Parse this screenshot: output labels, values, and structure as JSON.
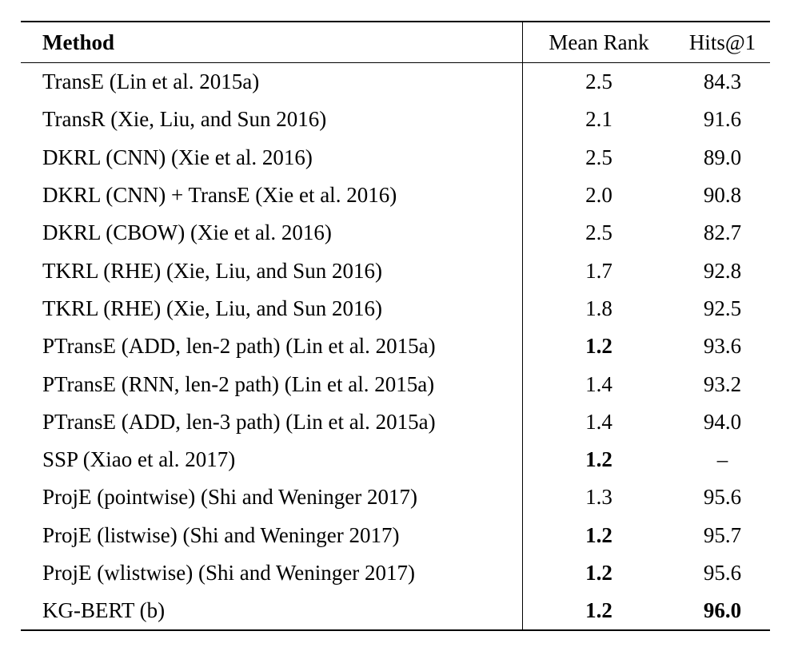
{
  "table": {
    "headers": {
      "method": "Method",
      "mean_rank": "Mean Rank",
      "hits1": "Hits@1"
    },
    "rows": [
      {
        "method": "TransE (Lin et al. 2015a)",
        "mean_rank": "2.5",
        "hits1": "84.3",
        "mr_bold": false,
        "hits_bold": false
      },
      {
        "method": "TransR (Xie, Liu, and Sun 2016)",
        "mean_rank": "2.1",
        "hits1": "91.6",
        "mr_bold": false,
        "hits_bold": false
      },
      {
        "method": "DKRL (CNN) (Xie et al. 2016)",
        "mean_rank": "2.5",
        "hits1": "89.0",
        "mr_bold": false,
        "hits_bold": false
      },
      {
        "method": "DKRL (CNN) + TransE (Xie et al. 2016)",
        "mean_rank": "2.0",
        "hits1": "90.8",
        "mr_bold": false,
        "hits_bold": false
      },
      {
        "method": "DKRL (CBOW) (Xie et al. 2016)",
        "mean_rank": "2.5",
        "hits1": "82.7",
        "mr_bold": false,
        "hits_bold": false
      },
      {
        "method": "TKRL (RHE) (Xie, Liu, and Sun 2016)",
        "mean_rank": "1.7",
        "hits1": "92.8",
        "mr_bold": false,
        "hits_bold": false
      },
      {
        "method": "TKRL (RHE) (Xie, Liu, and Sun 2016)",
        "mean_rank": "1.8",
        "hits1": "92.5",
        "mr_bold": false,
        "hits_bold": false
      },
      {
        "method": "PTransE (ADD, len-2 path) (Lin et al. 2015a)",
        "mean_rank": "1.2",
        "hits1": "93.6",
        "mr_bold": true,
        "hits_bold": false
      },
      {
        "method": "PTransE (RNN, len-2 path) (Lin et al. 2015a)",
        "mean_rank": "1.4",
        "hits1": "93.2",
        "mr_bold": false,
        "hits_bold": false
      },
      {
        "method": "PTransE (ADD, len-3 path) (Lin et al. 2015a)",
        "mean_rank": "1.4",
        "hits1": "94.0",
        "mr_bold": false,
        "hits_bold": false
      },
      {
        "method": "SSP (Xiao et al. 2017)",
        "mean_rank": "1.2",
        "hits1": "–",
        "mr_bold": true,
        "hits_bold": false
      },
      {
        "method": "ProjE (pointwise) (Shi and Weninger 2017)",
        "mean_rank": "1.3",
        "hits1": "95.6",
        "mr_bold": false,
        "hits_bold": false
      },
      {
        "method": "ProjE (listwise) (Shi and Weninger 2017)",
        "mean_rank": "1.2",
        "hits1": "95.7",
        "mr_bold": true,
        "hits_bold": false
      },
      {
        "method": "ProjE (wlistwise) (Shi and Weninger 2017)",
        "mean_rank": "1.2",
        "hits1": "95.6",
        "mr_bold": true,
        "hits_bold": false
      },
      {
        "method": "KG-BERT (b)",
        "mean_rank": "1.2",
        "hits1": "96.0",
        "mr_bold": true,
        "hits_bold": true
      }
    ]
  }
}
